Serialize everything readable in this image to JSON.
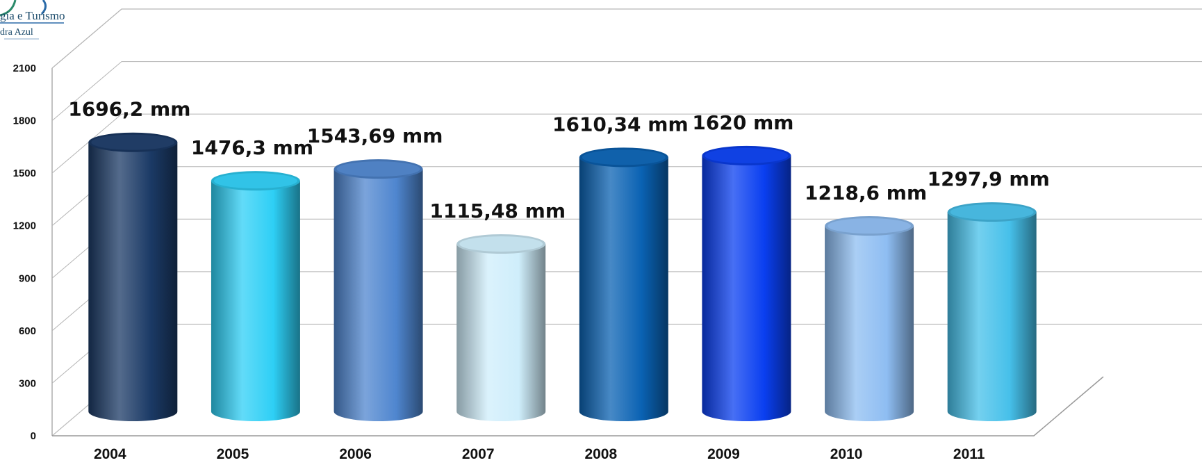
{
  "logo": {
    "name": "logo",
    "line1": "gia e Turismo",
    "line2": "dra Azul"
  },
  "chart_data": {
    "type": "bar",
    "style": "3d-cylinder",
    "title": "",
    "xlabel": "",
    "ylabel": "",
    "ylim": [
      0,
      2100
    ],
    "yticks": [
      0,
      300,
      600,
      900,
      1200,
      1500,
      1800,
      2100
    ],
    "grid": true,
    "legend": "none",
    "categories": [
      "2004",
      "2005",
      "2006",
      "2007",
      "2008",
      "2009",
      "2010",
      "2011"
    ],
    "values": [
      1696.2,
      1476.3,
      1543.69,
      1115.48,
      1610.34,
      1620,
      1218.6,
      1297.9
    ],
    "data_labels": [
      "1696,2 mm",
      "1476,3 mm",
      "1543,69 mm",
      "1115,48 mm",
      "1610,34 mm",
      "1620 mm",
      "1218,6 mm",
      "1297,9 mm"
    ],
    "colors": [
      "#1b3a66",
      "#2ecff5",
      "#4f86cf",
      "#cfeefb",
      "#0a62b3",
      "#0a3ff0",
      "#8ebdf2",
      "#46c0ea"
    ]
  }
}
